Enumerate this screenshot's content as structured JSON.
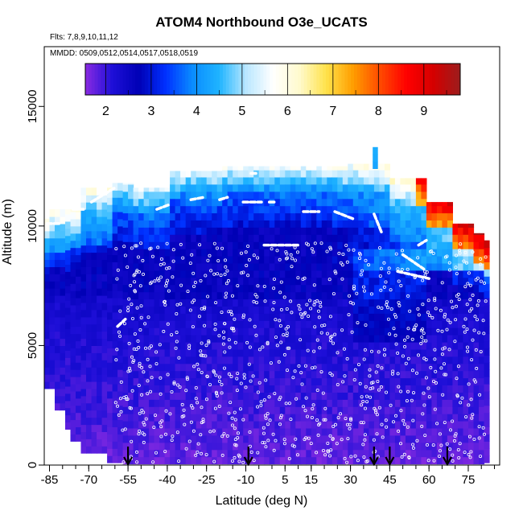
{
  "chart_data": {
    "type": "heatmap",
    "title": "ATOM4 Northbound O3e_UCATS",
    "flights_label": "Flts: 7,8,9,10,11,12",
    "mmdd_label": "MMDD: 0509,0512,0514,0517,0518,0519",
    "xlabel": "Latitude (deg N)",
    "ylabel": "Altitude (m)",
    "xlim": [
      -87,
      87
    ],
    "ylim": [
      0,
      17500
    ],
    "x_ticks": [
      -85,
      -70,
      -55,
      -40,
      -25,
      -10,
      5,
      15,
      30,
      45,
      60,
      75
    ],
    "y_ticks": [
      0,
      5000,
      10000,
      15000
    ],
    "colorbar": {
      "ticks": [
        2,
        3,
        4,
        5,
        6,
        7,
        8,
        9
      ],
      "range": [
        1.55,
        9.8
      ],
      "colors": [
        "#8a2be2",
        "#1e0fd8",
        "#0000b5",
        "#0030ff",
        "#0a8cff",
        "#1fb4ff",
        "#b9e7ff",
        "#ffffff",
        "#fffacd",
        "#ffe24a",
        "#ff9d00",
        "#ff4a00",
        "#ff0000",
        "#d40000",
        "#9c1d1d"
      ]
    },
    "profile_markers_lat": [
      -55,
      -9,
      39,
      45,
      67
    ]
  }
}
